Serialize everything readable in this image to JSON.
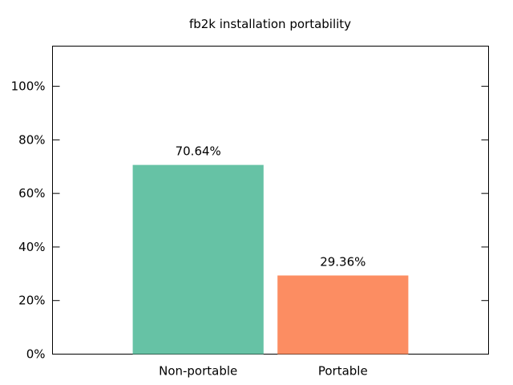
{
  "chart_data": {
    "type": "bar",
    "title": "fb2k installation portability",
    "xlabel": "",
    "ylabel": "",
    "categories": [
      "Non-portable",
      "Portable"
    ],
    "values": [
      70.64,
      29.36
    ],
    "value_labels": [
      "70.64%",
      "29.36%"
    ],
    "colors": [
      "#66c2a5",
      "#fc8d62"
    ],
    "ylim": [
      0,
      115
    ],
    "yticks": [
      0,
      20,
      40,
      60,
      80,
      100
    ],
    "ytick_labels": [
      "0%",
      "20%",
      "40%",
      "60%",
      "80%",
      "100%"
    ],
    "grid": false,
    "legend": "none"
  }
}
